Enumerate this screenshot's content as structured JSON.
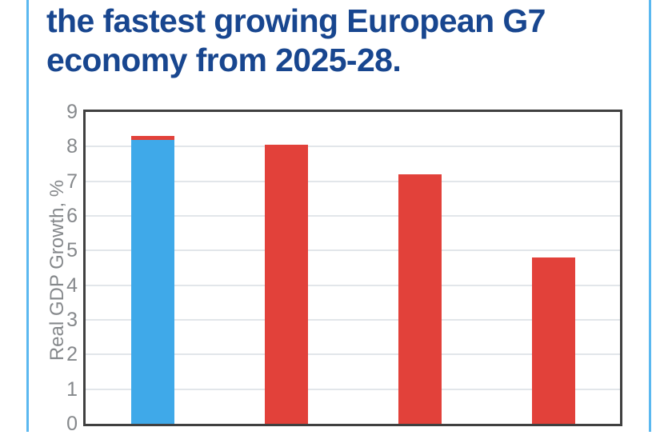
{
  "headline": {
    "line1": "the fastest growing European G7",
    "line2": "economy from 2025-28."
  },
  "colors": {
    "headline_text": "#18468F",
    "accent_line": "#5BB8F0",
    "axis_border": "#404040",
    "gridline": "#E2E6EA",
    "tick_label": "#85888B",
    "bar_blue": "#3FA9E9",
    "bar_red": "#E2413A",
    "background": "#FFFFFF"
  },
  "chart_data": {
    "type": "bar",
    "title": "",
    "xlabel": "",
    "ylabel": "Real GDP Growth, %",
    "ylim": [
      0,
      9
    ],
    "yticks": [
      0,
      1,
      2,
      3,
      4,
      5,
      6,
      7,
      8,
      9
    ],
    "grid": true,
    "legend": "none",
    "x_tick_labels_visible": false,
    "bars": [
      {
        "name": "bar-1-blue-with-red-cap",
        "total": 8.3,
        "segments": [
          {
            "value": 8.2,
            "color_key": "bar_blue"
          },
          {
            "value": 0.1,
            "color_key": "bar_red"
          }
        ]
      },
      {
        "name": "bar-2-red",
        "total": 8.05,
        "segments": [
          {
            "value": 8.05,
            "color_key": "bar_red"
          }
        ]
      },
      {
        "name": "bar-3-red",
        "total": 7.2,
        "segments": [
          {
            "value": 7.2,
            "color_key": "bar_red"
          }
        ]
      },
      {
        "name": "bar-4-red",
        "total": 4.8,
        "segments": [
          {
            "value": 4.8,
            "color_key": "bar_red"
          }
        ]
      }
    ]
  }
}
